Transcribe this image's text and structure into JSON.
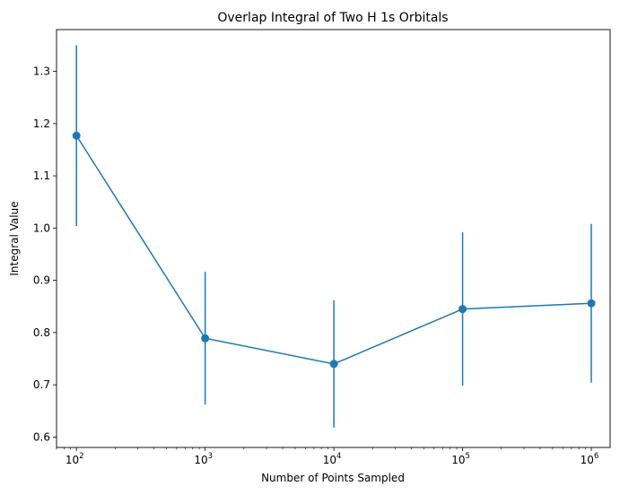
{
  "chart_data": {
    "type": "line",
    "title": "Overlap Integral of Two H 1s Orbitals",
    "xlabel": "Number of Points Sampled",
    "ylabel": "Integral Value",
    "x_scale": "log",
    "xlim": [
      70,
      1400000
    ],
    "ylim": [
      0.58,
      1.38
    ],
    "x_ticks": [
      {
        "value": 100,
        "base": "10",
        "exp": "2"
      },
      {
        "value": 1000,
        "base": "10",
        "exp": "3"
      },
      {
        "value": 10000,
        "base": "10",
        "exp": "4"
      },
      {
        "value": 100000,
        "base": "10",
        "exp": "5"
      },
      {
        "value": 1000000,
        "base": "10",
        "exp": "6"
      }
    ],
    "y_ticks": [
      "0.6",
      "0.7",
      "0.8",
      "0.9",
      "1.0",
      "1.1",
      "1.2",
      "1.3"
    ],
    "grid": false,
    "series": [
      {
        "color": "#1f77b4",
        "marker": "circle",
        "x": [
          100,
          1000,
          10000,
          100000,
          1000000
        ],
        "y": [
          1.177,
          0.789,
          0.74,
          0.845,
          0.856
        ],
        "yerr": [
          0.173,
          0.127,
          0.122,
          0.147,
          0.152
        ]
      }
    ]
  }
}
